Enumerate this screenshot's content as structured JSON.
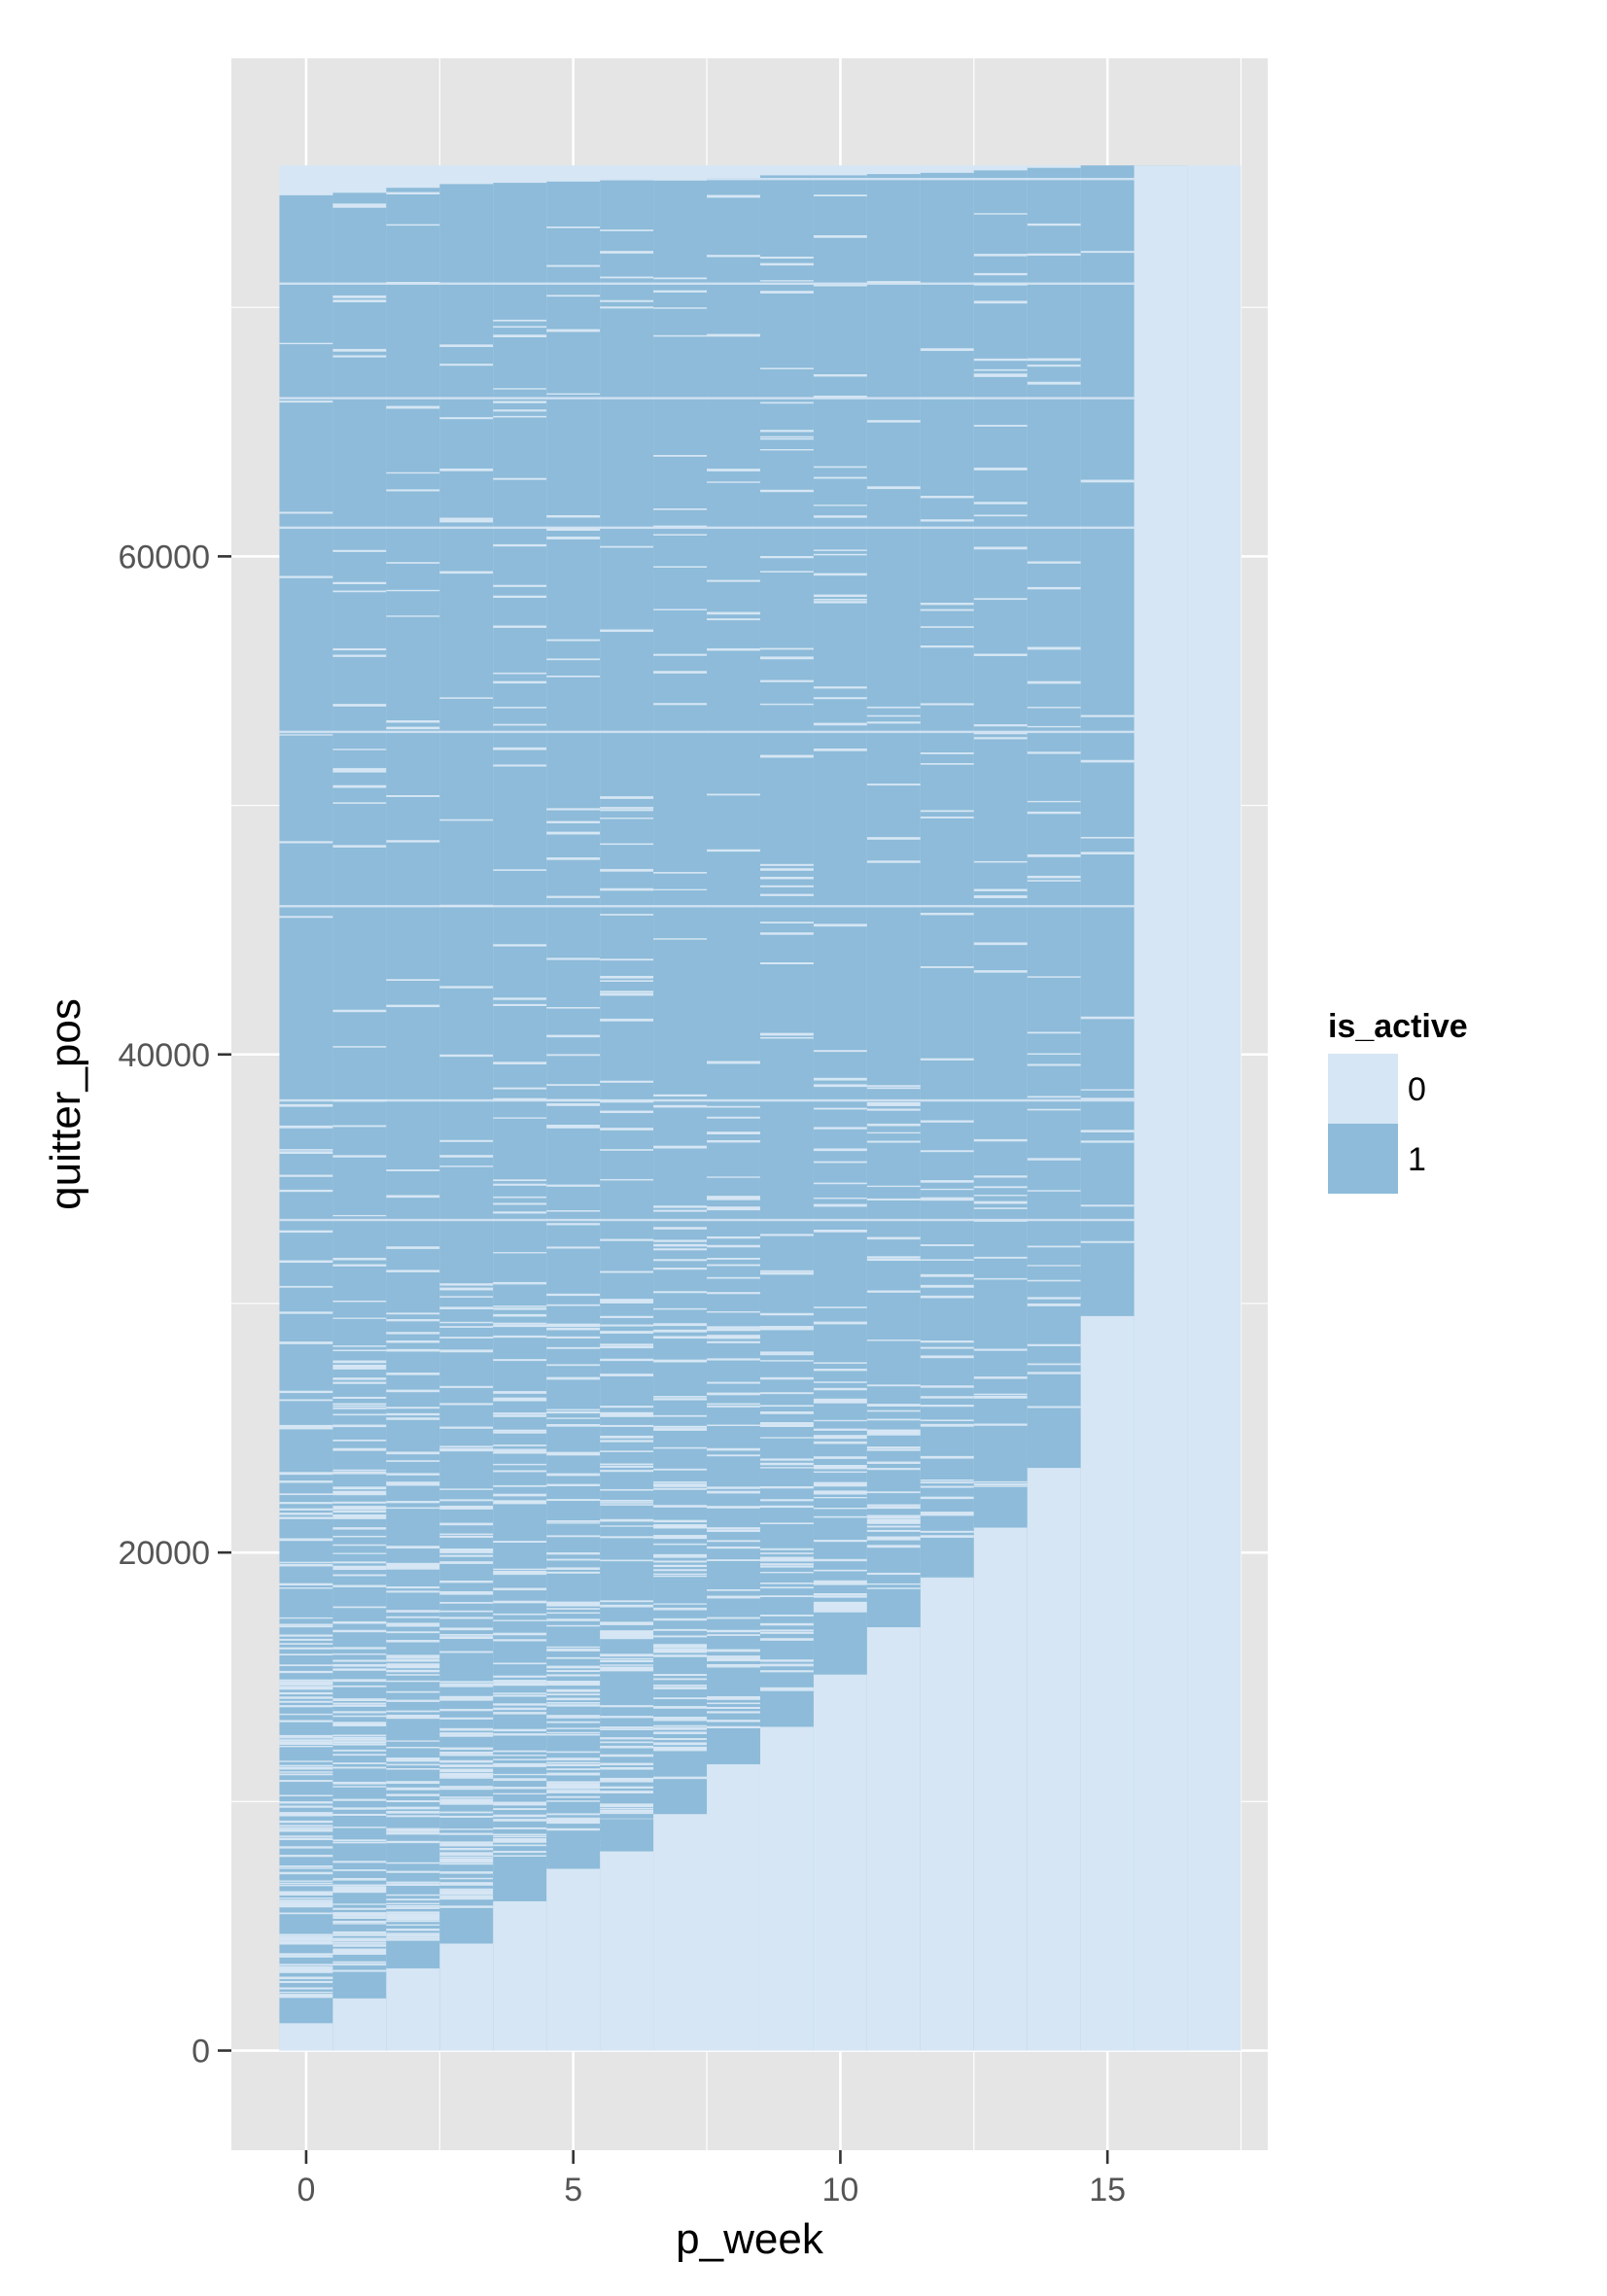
{
  "chart_data": {
    "type": "heatmap",
    "title": "",
    "xlabel": "p_week",
    "ylabel": "quitter_pos",
    "x_ticks": [
      0,
      5,
      10,
      15
    ],
    "y_ticks": [
      0,
      20000,
      40000,
      60000
    ],
    "x_tick_labels": [
      "0",
      "5",
      "10",
      "15"
    ],
    "y_tick_labels": [
      "0",
      "20000",
      "40000",
      "60000"
    ],
    "xlim": [
      -1.4,
      18.0
    ],
    "ylim": [
      -4000,
      80000
    ],
    "grid": true,
    "legend": {
      "title": "is_active",
      "placement": "right",
      "entries": [
        {
          "label": "0",
          "color": "#d6e6f4"
        },
        {
          "label": "1",
          "color": "#8dbbd9"
        }
      ]
    },
    "colors": {
      "inactive": "#d6e6f4",
      "active": "#8dbbd9",
      "panel": "#e5e5e5",
      "gridline": "#ffffff"
    },
    "tile_extent": {
      "x_min": -0.5,
      "x_max": 17.5,
      "y_min": 0,
      "y_max": 75700
    },
    "weeks": [
      0,
      1,
      2,
      3,
      4,
      5,
      6,
      7,
      8,
      9,
      10,
      11,
      12,
      13,
      14,
      15,
      16,
      17
    ],
    "quitter_pos_top_by_week": [
      1100,
      2100,
      3300,
      4300,
      6000,
      7300,
      8000,
      9500,
      11500,
      13000,
      15100,
      17000,
      19000,
      21000,
      23400,
      29500,
      75700,
      75700
    ],
    "active_pos_top_by_week": [
      74500,
      74600,
      74800,
      74950,
      75000,
      75050,
      75100,
      75150,
      75200,
      75300,
      75300,
      75350,
      75400,
      75500,
      75600,
      75700,
      75700,
      0
    ]
  }
}
